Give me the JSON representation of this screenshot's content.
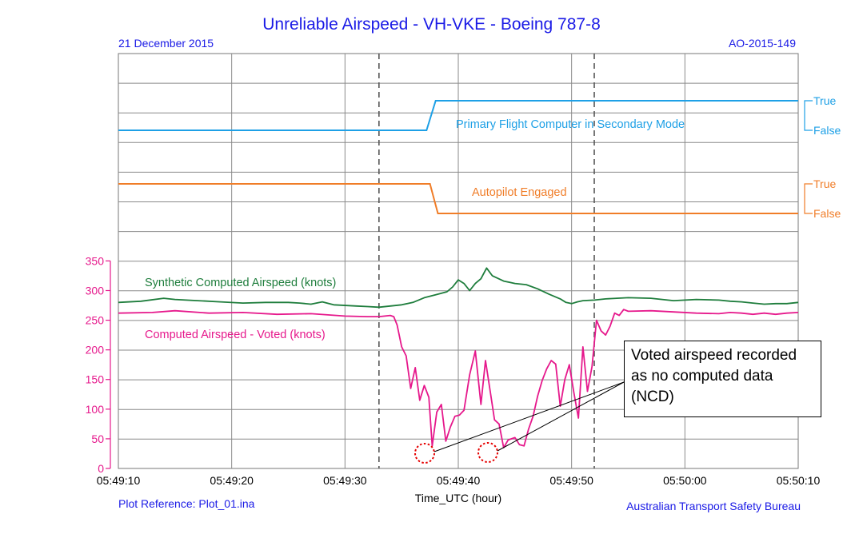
{
  "header": {
    "title": "Unreliable Airspeed - VH-VKE - Boeing 787-8",
    "date": "21 December 2015",
    "reference": "AO-2015-149",
    "plot_reference": "Plot Reference: Plot_01.ina",
    "organisation": "Australian Transport Safety Bureau"
  },
  "callout": {
    "text": "Voted airspeed recorded as no computed data (NCD)"
  },
  "colors": {
    "pfc": "#1ea0e6",
    "autopilot": "#f07d28",
    "synthetic": "#1e7d3c",
    "voted": "#e6198c",
    "header_text": "#1a1ae6",
    "marker": "#e60000"
  },
  "chart_data": {
    "type": "line",
    "xlabel": "Time_UTC (hour)",
    "x_ticks": [
      "05:49:10",
      "05:49:20",
      "05:49:30",
      "05:49:40",
      "05:49:50",
      "05:50:00",
      "05:50:10"
    ],
    "x_range_seconds_after_054910": [
      0,
      60
    ],
    "vertical_markers_seconds_after_054910": [
      23,
      42
    ],
    "discrete_panels": [
      {
        "name": "Primary Flight Computer in Secondary Mode",
        "levels": [
          "True",
          "False"
        ],
        "points": [
          [
            0,
            0
          ],
          [
            27.2,
            0
          ],
          [
            28.0,
            1
          ],
          [
            60,
            1
          ]
        ]
      },
      {
        "name": "Autopilot Engaged",
        "levels": [
          "True",
          "False"
        ],
        "points": [
          [
            0,
            1
          ],
          [
            27.5,
            1
          ],
          [
            28.2,
            0
          ],
          [
            60,
            0
          ]
        ]
      }
    ],
    "airspeed_panel": {
      "ylim": [
        0,
        350
      ],
      "y_ticks": [
        0,
        50,
        100,
        150,
        200,
        250,
        300,
        350
      ],
      "grid": true,
      "series": [
        {
          "name": "Synthetic Computed Airspeed (knots)",
          "points": [
            [
              0,
              280
            ],
            [
              2,
              282
            ],
            [
              4,
              287
            ],
            [
              5,
              285
            ],
            [
              7,
              283
            ],
            [
              9,
              281
            ],
            [
              11,
              279
            ],
            [
              13,
              280
            ],
            [
              15,
              280
            ],
            [
              16,
              279
            ],
            [
              17,
              277
            ],
            [
              18,
              281
            ],
            [
              19,
              276
            ],
            [
              21,
              274
            ],
            [
              22,
              273
            ],
            [
              23,
              272
            ],
            [
              24,
              274
            ],
            [
              25,
              276
            ],
            [
              26,
              280
            ],
            [
              27,
              288
            ],
            [
              28,
              293
            ],
            [
              29,
              298
            ],
            [
              29.5,
              306
            ],
            [
              30,
              318
            ],
            [
              30.5,
              312
            ],
            [
              31,
              300
            ],
            [
              31.5,
              312
            ],
            [
              32,
              320
            ],
            [
              32.5,
              338
            ],
            [
              33,
              325
            ],
            [
              34,
              316
            ],
            [
              35,
              312
            ],
            [
              36,
              310
            ],
            [
              37,
              303
            ],
            [
              38,
              294
            ],
            [
              39,
              286
            ],
            [
              39.5,
              280
            ],
            [
              40,
              278
            ],
            [
              40.5,
              281
            ],
            [
              41,
              283
            ],
            [
              42,
              284
            ],
            [
              43,
              286
            ],
            [
              44,
              287
            ],
            [
              45,
              288
            ],
            [
              47,
              287
            ],
            [
              49,
              283
            ],
            [
              51,
              285
            ],
            [
              53,
              284
            ],
            [
              54,
              282
            ],
            [
              55,
              281
            ],
            [
              56,
              279
            ],
            [
              57,
              277
            ],
            [
              58,
              278
            ],
            [
              59,
              278
            ],
            [
              60,
              280
            ]
          ]
        },
        {
          "name": "Computed Airspeed - Voted (knots)",
          "points": [
            [
              0,
              262
            ],
            [
              3,
              263
            ],
            [
              5,
              266
            ],
            [
              8,
              262
            ],
            [
              11,
              263
            ],
            [
              14,
              260
            ],
            [
              17,
              261
            ],
            [
              20,
              257
            ],
            [
              22,
              256
            ],
            [
              23,
              256
            ],
            [
              24,
              258
            ],
            [
              24.3,
              256
            ],
            [
              24.6,
              242
            ],
            [
              25,
              205
            ],
            [
              25.4,
              190
            ],
            [
              25.8,
              135
            ],
            [
              26.2,
              170
            ],
            [
              26.6,
              115
            ],
            [
              27,
              140
            ],
            [
              27.4,
              120
            ],
            [
              27.7,
              38
            ],
            [
              28.1,
              95
            ],
            [
              28.5,
              108
            ],
            [
              28.9,
              46
            ],
            [
              29.3,
              70
            ],
            [
              29.7,
              88
            ],
            [
              30.1,
              90
            ],
            [
              30.5,
              98
            ],
            [
              31,
              158
            ],
            [
              31.5,
              198
            ],
            [
              32,
              108
            ],
            [
              32.4,
              182
            ],
            [
              32.8,
              132
            ],
            [
              33.2,
              82
            ],
            [
              33.6,
              75
            ],
            [
              34,
              35
            ],
            [
              34.4,
              48
            ],
            [
              35,
              52
            ],
            [
              35.4,
              40
            ],
            [
              35.8,
              38
            ],
            [
              36.2,
              66
            ],
            [
              36.6,
              88
            ],
            [
              37,
              122
            ],
            [
              37.4,
              148
            ],
            [
              37.8,
              168
            ],
            [
              38.2,
              182
            ],
            [
              38.6,
              176
            ],
            [
              39,
              105
            ],
            [
              39.4,
              150
            ],
            [
              39.8,
              175
            ],
            [
              40.2,
              128
            ],
            [
              40.6,
              85
            ],
            [
              41,
              205
            ],
            [
              41.4,
              130
            ],
            [
              41.8,
              172
            ],
            [
              42.2,
              250
            ],
            [
              42.6,
              232
            ],
            [
              43,
              225
            ],
            [
              43.4,
              240
            ],
            [
              43.8,
              262
            ],
            [
              44.2,
              258
            ],
            [
              44.6,
              268
            ],
            [
              45,
              265
            ],
            [
              47,
              266
            ],
            [
              49,
              264
            ],
            [
              51,
              262
            ],
            [
              53,
              261
            ],
            [
              54,
              263
            ],
            [
              55,
              262
            ],
            [
              56,
              260
            ],
            [
              57,
              262
            ],
            [
              58,
              260
            ],
            [
              59,
              262
            ],
            [
              60,
              263
            ]
          ]
        }
      ]
    }
  }
}
